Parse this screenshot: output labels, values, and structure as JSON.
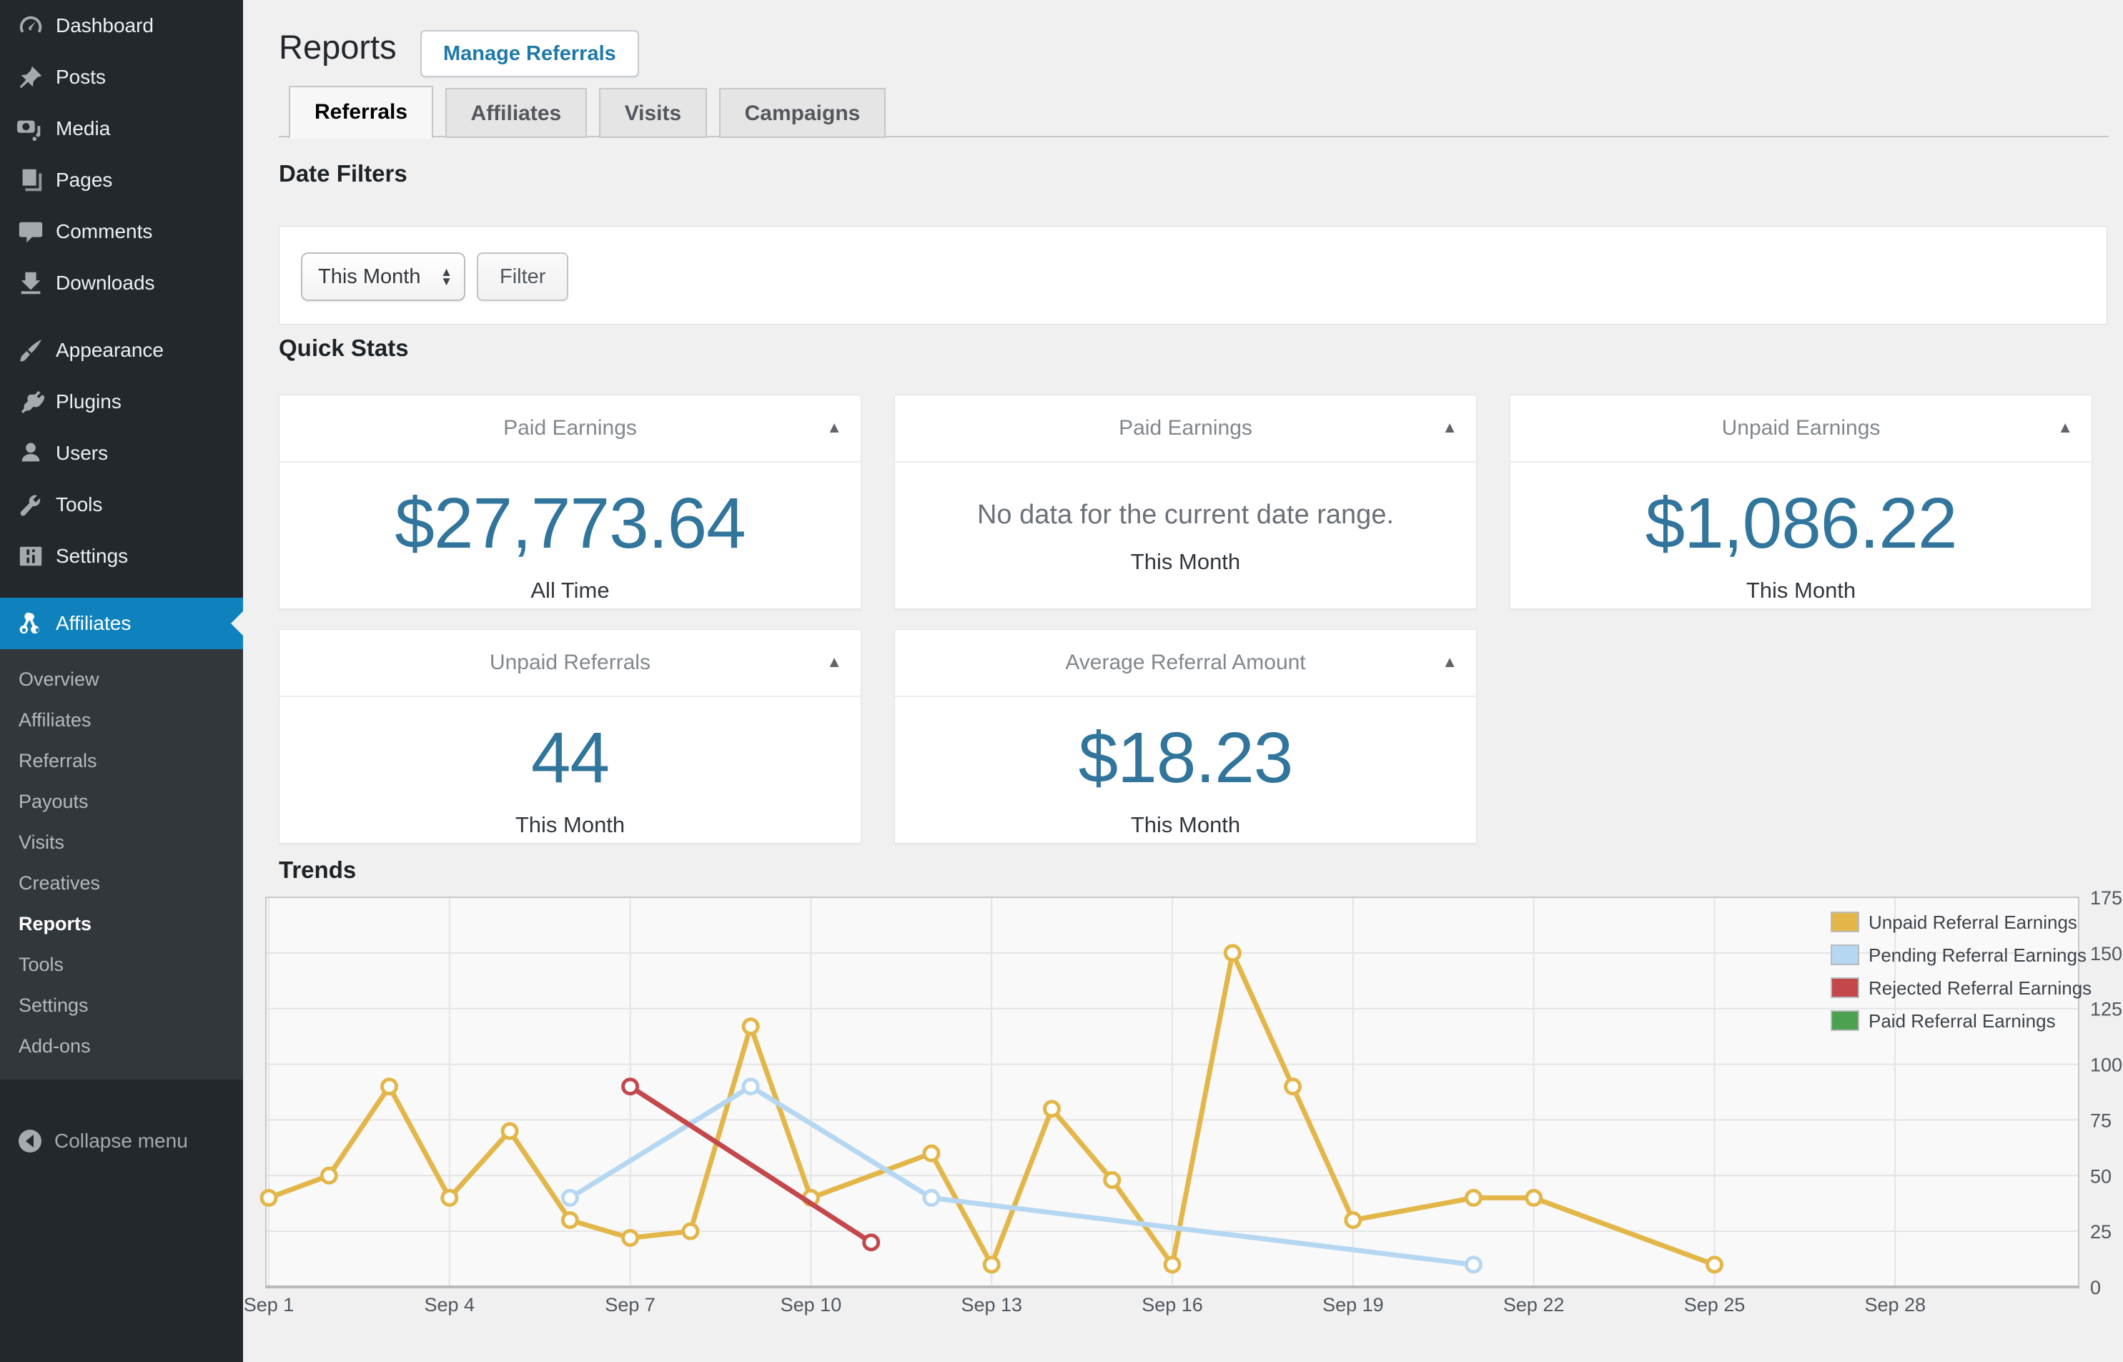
{
  "sidebar": {
    "items": [
      {
        "label": "Dashboard"
      },
      {
        "label": "Posts"
      },
      {
        "label": "Media"
      },
      {
        "label": "Pages"
      },
      {
        "label": "Comments"
      },
      {
        "label": "Downloads"
      },
      {
        "label": "Appearance"
      },
      {
        "label": "Plugins"
      },
      {
        "label": "Users"
      },
      {
        "label": "Tools"
      },
      {
        "label": "Settings"
      },
      {
        "label": "Affiliates"
      }
    ],
    "submenu": [
      {
        "label": "Overview"
      },
      {
        "label": "Affiliates"
      },
      {
        "label": "Referrals"
      },
      {
        "label": "Payouts"
      },
      {
        "label": "Visits"
      },
      {
        "label": "Creatives"
      },
      {
        "label": "Reports"
      },
      {
        "label": "Tools"
      },
      {
        "label": "Settings"
      },
      {
        "label": "Add-ons"
      }
    ],
    "collapse_label": "Collapse menu"
  },
  "header": {
    "title": "Reports",
    "action_button": "Manage Referrals"
  },
  "tabs": {
    "items": [
      {
        "label": "Referrals",
        "active": true
      },
      {
        "label": "Affiliates",
        "active": false
      },
      {
        "label": "Visits",
        "active": false
      },
      {
        "label": "Campaigns",
        "active": false
      }
    ]
  },
  "date_filters": {
    "heading": "Date Filters",
    "select_value": "This Month",
    "filter_button": "Filter"
  },
  "quick_stats": {
    "heading": "Quick Stats",
    "cards": [
      {
        "title": "Paid Earnings",
        "value": "$27,773.64",
        "period": "All Time"
      },
      {
        "title": "Paid Earnings",
        "value": "No data for the current date range.",
        "period": "This Month"
      },
      {
        "title": "Unpaid Earnings",
        "value": "$1,086.22",
        "period": "This Month"
      },
      {
        "title": "Unpaid Referrals",
        "value": "44",
        "period": "This Month"
      },
      {
        "title": "Average Referral Amount",
        "value": "$18.23",
        "period": "This Month"
      }
    ]
  },
  "trends": {
    "heading": "Trends"
  },
  "chart_data": {
    "type": "line",
    "title": "Trends",
    "xlabel": "",
    "ylabel": "",
    "x_axis": "Days of September",
    "x_range_days": [
      1,
      31
    ],
    "ylim": [
      0,
      175
    ],
    "y_ticks": [
      0,
      25,
      50,
      75,
      100,
      125,
      150,
      175
    ],
    "y_axis_side": "right",
    "grid": true,
    "legend_position": "top-right",
    "x_ticks": [
      {
        "day": 1,
        "label": "Sep 1"
      },
      {
        "day": 4,
        "label": "Sep 4"
      },
      {
        "day": 7,
        "label": "Sep 7"
      },
      {
        "day": 10,
        "label": "Sep 10"
      },
      {
        "day": 13,
        "label": "Sep 13"
      },
      {
        "day": 16,
        "label": "Sep 16"
      },
      {
        "day": 19,
        "label": "Sep 19"
      },
      {
        "day": 22,
        "label": "Sep 22"
      },
      {
        "day": 25,
        "label": "Sep 25"
      },
      {
        "day": 28,
        "label": "Sep 28"
      }
    ],
    "series": [
      {
        "name": "Unpaid Referral Earnings",
        "color": "#e3b64a",
        "points": [
          [
            1,
            40
          ],
          [
            2,
            50
          ],
          [
            3,
            90
          ],
          [
            4,
            40
          ],
          [
            5,
            70
          ],
          [
            6,
            30
          ],
          [
            7,
            22
          ],
          [
            8,
            25
          ],
          [
            9,
            117
          ],
          [
            10,
            40
          ],
          [
            12,
            60
          ],
          [
            13,
            10
          ],
          [
            14,
            80
          ],
          [
            15,
            48
          ],
          [
            16,
            10
          ],
          [
            17,
            150
          ],
          [
            18,
            90
          ],
          [
            19,
            30
          ],
          [
            21,
            40
          ],
          [
            22,
            40
          ],
          [
            25,
            10
          ]
        ]
      },
      {
        "name": "Pending Referral Earnings",
        "color": "#b5d7f1",
        "points": [
          [
            6,
            40
          ],
          [
            9,
            90
          ],
          [
            12,
            40
          ],
          [
            21,
            10
          ]
        ]
      },
      {
        "name": "Rejected Referral Earnings",
        "color": "#c4474b",
        "points": [
          [
            7,
            90
          ],
          [
            11,
            20
          ]
        ]
      },
      {
        "name": "Paid Referral Earnings",
        "color": "#4ca150",
        "points": []
      }
    ]
  }
}
